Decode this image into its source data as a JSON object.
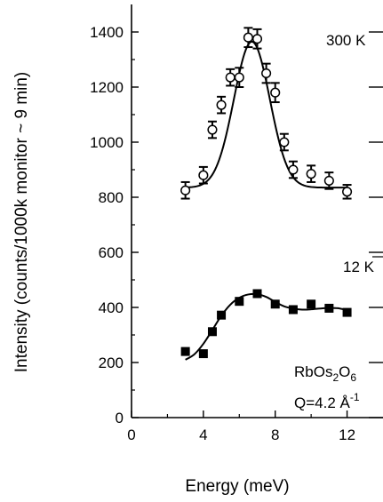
{
  "chart_data": {
    "type": "scatter",
    "xlabel": "Energy (meV)",
    "ylabel": "Intensity (counts/1000k monitor ~ 9 min)",
    "xlim": [
      0,
      14
    ],
    "ylim": [
      0,
      1500
    ],
    "x_ticks": [
      "0",
      "4",
      "8",
      "12"
    ],
    "y_ticks": [
      "0",
      "200",
      "400",
      "600",
      "800",
      "1000",
      "1200",
      "1400"
    ],
    "grid": false,
    "annotations": {
      "t300": "300 K",
      "t12": "12 K",
      "sample_base": "RbOs",
      "sample_sub1": "2",
      "sample_mid": "O",
      "sample_sub2": "6",
      "q": "Q=4.2 Å",
      "q_sup": "-1"
    },
    "series": [
      {
        "temperature": "300 K",
        "marker": "open-circle",
        "x": [
          3.0,
          4.0,
          4.5,
          5.0,
          5.5,
          6.0,
          6.5,
          7.0,
          7.5,
          8.0,
          8.5,
          9.0,
          10.0,
          11.0,
          12.0
        ],
        "y": [
          825,
          880,
          1045,
          1135,
          1235,
          1235,
          1380,
          1375,
          1250,
          1180,
          1000,
          900,
          885,
          860,
          820
        ],
        "err": [
          30,
          30,
          30,
          30,
          30,
          35,
          35,
          35,
          35,
          35,
          30,
          30,
          30,
          30,
          25
        ],
        "fit": {
          "baseline": 835,
          "amplitude": 530,
          "center": 6.7,
          "sigma": 1.0
        }
      },
      {
        "temperature": "12 K",
        "marker": "filled-square",
        "x": [
          3.0,
          4.0,
          4.5,
          5.0,
          6.0,
          7.0,
          8.0,
          9.0,
          10.0,
          11.0,
          12.0
        ],
        "y": [
          240,
          232,
          312,
          372,
          422,
          450,
          412,
          392,
          412,
          397,
          382
        ],
        "fit_curve": {
          "x": [
            3.0,
            3.5,
            4.0,
            4.5,
            5.0,
            5.5,
            6.0,
            6.5,
            7.0,
            7.5,
            8.0,
            8.5,
            9.0,
            9.5,
            10.0,
            10.5,
            11.0,
            11.5,
            12.0
          ],
          "y": [
            210,
            230,
            268,
            318,
            370,
            410,
            435,
            447,
            448,
            438,
            420,
            404,
            396,
            392,
            393,
            396,
            398,
            397,
            390
          ]
        }
      }
    ]
  }
}
